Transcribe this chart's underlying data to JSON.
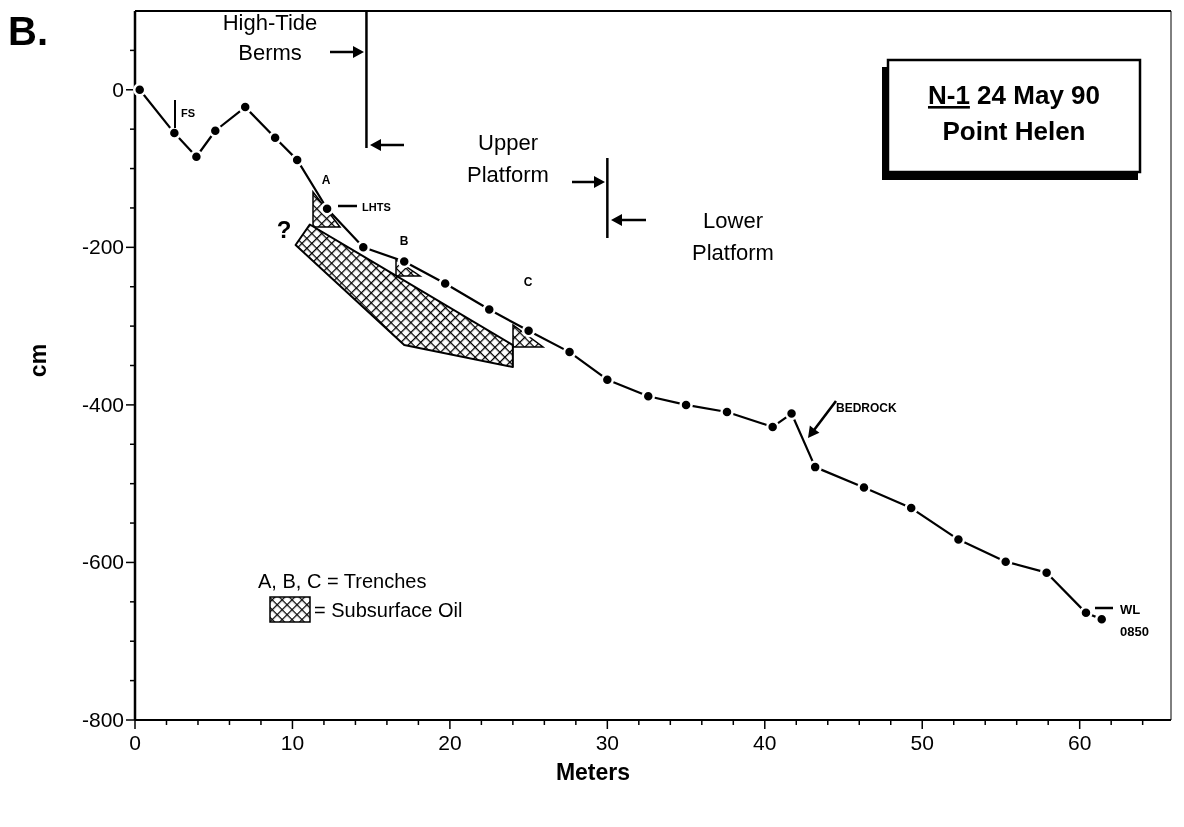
{
  "chart_data": {
    "type": "line",
    "title": "N-1 24 May 90",
    "subtitle": "Point Helen",
    "xlabel": "Meters",
    "ylabel": "cm",
    "xlim": [
      0,
      65.8
    ],
    "ylim": [
      -800,
      100
    ],
    "xticks": [
      0,
      {
        "value": 2,
        "label": null
      },
      {
        "value": 4,
        "label": null
      },
      {
        "value": 6,
        "label": null
      },
      {
        "value": 8,
        "label": null
      },
      10,
      {
        "value": 12,
        "label": null
      },
      {
        "value": 14,
        "label": null
      },
      {
        "value": 16,
        "label": null
      },
      {
        "value": 18,
        "label": null
      },
      20,
      {
        "value": 22,
        "label": null
      },
      {
        "value": 24,
        "label": null
      },
      {
        "value": 26,
        "label": null
      },
      {
        "value": 28,
        "label": null
      },
      30,
      {
        "value": 32,
        "label": null
      },
      {
        "value": 34,
        "label": null
      },
      {
        "value": 36,
        "label": null
      },
      {
        "value": 38,
        "label": null
      },
      40,
      {
        "value": 42,
        "label": null
      },
      {
        "value": 44,
        "label": null
      },
      {
        "value": 46,
        "label": null
      },
      {
        "value": 48,
        "label": null
      },
      50,
      {
        "value": 52,
        "label": null
      },
      {
        "value": 54,
        "label": null
      },
      {
        "value": 56,
        "label": null
      },
      {
        "value": 58,
        "label": null
      },
      60,
      {
        "value": 62,
        "label": null
      },
      {
        "value": 64,
        "label": null
      }
    ],
    "yticks": [
      {
        "value": 50,
        "label": null
      },
      0,
      {
        "value": -50,
        "label": null
      },
      {
        "value": -100,
        "label": null
      },
      {
        "value": -150,
        "label": null
      },
      -200,
      {
        "value": -250,
        "label": null
      },
      {
        "value": -300,
        "label": null
      },
      {
        "value": -350,
        "label": null
      },
      -400,
      {
        "value": -450,
        "label": null
      },
      {
        "value": -500,
        "label": null
      },
      {
        "value": -550,
        "label": null
      },
      -600,
      {
        "value": -650,
        "label": null
      },
      {
        "value": -700,
        "label": null
      },
      {
        "value": -750,
        "label": null
      },
      -800
    ],
    "grid": false,
    "marker": "circle",
    "line_style": "solid",
    "legend": "bottom left",
    "series": [
      {
        "color": "#000000",
        "x": [
          0.3,
          2.5,
          3.9,
          5.1,
          7.0,
          8.9,
          10.3,
          12.2,
          14.5,
          17.1,
          19.7,
          22.5,
          25.0,
          27.6,
          30.0,
          32.6,
          35.0,
          37.6,
          40.5,
          41.7,
          43.2,
          46.3,
          49.3,
          52.3,
          55.3,
          57.9,
          60.4,
          61.4
        ],
        "values": [
          0,
          -55,
          -85,
          -52,
          -22,
          -61,
          -89,
          -151,
          -200,
          -218,
          -246,
          -279,
          -306,
          -333,
          -368,
          -389,
          -400,
          -409,
          -428,
          -411,
          -479,
          -505,
          -531,
          -571,
          -599,
          -613,
          -664,
          -672
        ]
      },
      {
        "type": "area",
        "name": "= Subsurface Oil",
        "color": "#000000",
        "marker": "none",
        "x": [
          10.2,
          11.1,
          24.0,
          24.0,
          17.1,
          10.2
        ],
        "values": [
          -197,
          -171,
          -324,
          -352,
          -324,
          -197
        ]
      }
    ],
    "ref_lines": [
      {
        "axis": "x",
        "value": 14.7,
        "label": null
      },
      {
        "axis": "x",
        "value": 30.0,
        "label": null
      }
    ],
    "annotations": [
      "B.",
      "A, B, C = Trenches",
      "High-Tide Berms",
      "Upper Platform",
      "Lower Platform",
      "BEDROCK",
      "WL 0850",
      "FS",
      "A",
      "LHTS",
      "B",
      "C",
      "?"
    ]
  }
}
